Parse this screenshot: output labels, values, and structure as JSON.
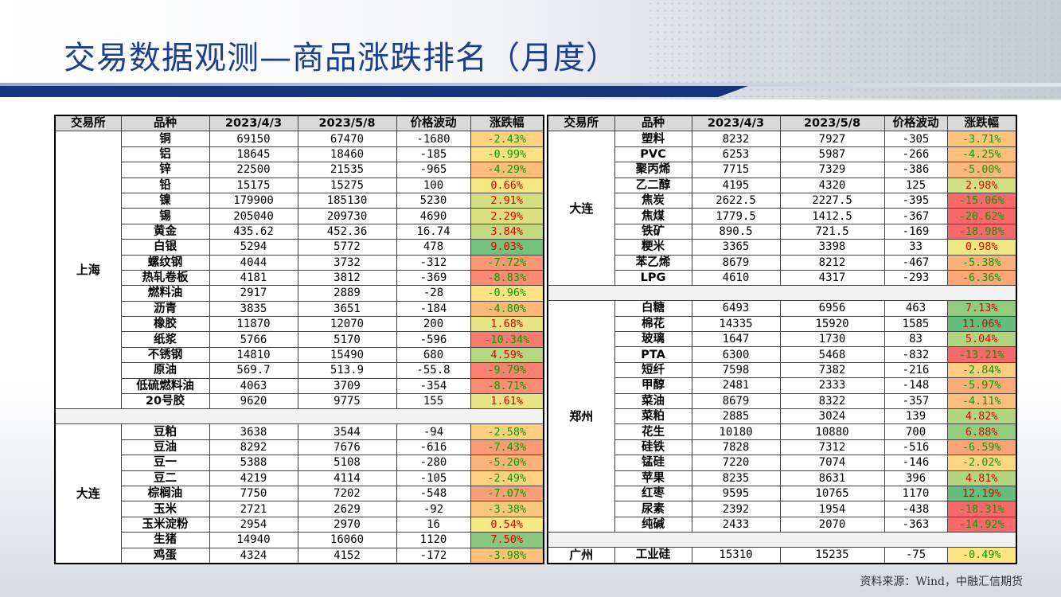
{
  "title": "交易数据观测—商品涨跌排名（月度）",
  "source": "资料来源：Wind，中融汇信期货",
  "colors": {
    "up_text": "#e00000",
    "down_text": "#00a000",
    "heat_green": "#63be7b",
    "heat_yellow": "#ffeb84",
    "heat_red": "#f8696b",
    "title": "#1c3f8c",
    "band": "#15357a"
  },
  "headers": [
    "交易所",
    "品种",
    "2023/4/3",
    "2023/5/8",
    "价格波动",
    "涨跌幅"
  ],
  "left_groups": [
    {
      "exchange": "上海",
      "rows": [
        {
          "name": "铜",
          "d1": "69150",
          "d2": "67470",
          "chg": "-1680",
          "pct": "-2.43%",
          "v": -2.43
        },
        {
          "name": "铝",
          "d1": "18645",
          "d2": "18460",
          "chg": "-185",
          "pct": "-0.99%",
          "v": -0.99
        },
        {
          "name": "锌",
          "d1": "22500",
          "d2": "21535",
          "chg": "-965",
          "pct": "-4.29%",
          "v": -4.29
        },
        {
          "name": "铅",
          "d1": "15175",
          "d2": "15275",
          "chg": "100",
          "pct": "0.66%",
          "v": 0.66
        },
        {
          "name": "镍",
          "d1": "179900",
          "d2": "185130",
          "chg": "5230",
          "pct": "2.91%",
          "v": 2.91
        },
        {
          "name": "锡",
          "d1": "205040",
          "d2": "209730",
          "chg": "4690",
          "pct": "2.29%",
          "v": 2.29
        },
        {
          "name": "黄金",
          "d1": "435.62",
          "d2": "452.36",
          "chg": "16.74",
          "pct": "3.84%",
          "v": 3.84
        },
        {
          "name": "白银",
          "d1": "5294",
          "d2": "5772",
          "chg": "478",
          "pct": "9.03%",
          "v": 9.03
        },
        {
          "name": "螺纹钢",
          "d1": "4044",
          "d2": "3732",
          "chg": "-312",
          "pct": "-7.72%",
          "v": -7.72
        },
        {
          "name": "热轧卷板",
          "d1": "4181",
          "d2": "3812",
          "chg": "-369",
          "pct": "-8.83%",
          "v": -8.83
        },
        {
          "name": "燃料油",
          "d1": "2917",
          "d2": "2889",
          "chg": "-28",
          "pct": "-0.96%",
          "v": -0.96
        },
        {
          "name": "沥青",
          "d1": "3835",
          "d2": "3651",
          "chg": "-184",
          "pct": "-4.80%",
          "v": -4.8
        },
        {
          "name": "橡胶",
          "d1": "11870",
          "d2": "12070",
          "chg": "200",
          "pct": "1.68%",
          "v": 1.68
        },
        {
          "name": "纸浆",
          "d1": "5766",
          "d2": "5170",
          "chg": "-596",
          "pct": "-10.34%",
          "v": -10.34
        },
        {
          "name": "不锈钢",
          "d1": "14810",
          "d2": "15490",
          "chg": "680",
          "pct": "4.59%",
          "v": 4.59
        },
        {
          "name": "原油",
          "d1": "569.7",
          "d2": "513.9",
          "chg": "-55.8",
          "pct": "-9.79%",
          "v": -9.79
        },
        {
          "name": "低硫燃料油",
          "d1": "4063",
          "d2": "3709",
          "chg": "-354",
          "pct": "-8.71%",
          "v": -8.71
        },
        {
          "name": "20号胶",
          "d1": "9620",
          "d2": "9775",
          "chg": "155",
          "pct": "1.61%",
          "v": 1.61
        }
      ]
    },
    {
      "exchange": "大连",
      "rows": [
        {
          "name": "豆粕",
          "d1": "3638",
          "d2": "3544",
          "chg": "-94",
          "pct": "-2.58%",
          "v": -2.58
        },
        {
          "name": "豆油",
          "d1": "8292",
          "d2": "7676",
          "chg": "-616",
          "pct": "-7.43%",
          "v": -7.43
        },
        {
          "name": "豆一",
          "d1": "5388",
          "d2": "5108",
          "chg": "-280",
          "pct": "-5.20%",
          "v": -5.2
        },
        {
          "name": "豆二",
          "d1": "4219",
          "d2": "4114",
          "chg": "-105",
          "pct": "-2.49%",
          "v": -2.49
        },
        {
          "name": "棕榈油",
          "d1": "7750",
          "d2": "7202",
          "chg": "-548",
          "pct": "-7.07%",
          "v": -7.07
        },
        {
          "name": "玉米",
          "d1": "2721",
          "d2": "2629",
          "chg": "-92",
          "pct": "-3.38%",
          "v": -3.38
        },
        {
          "name": "玉米淀粉",
          "d1": "2954",
          "d2": "2970",
          "chg": "16",
          "pct": "0.54%",
          "v": 0.54
        },
        {
          "name": "生猪",
          "d1": "14940",
          "d2": "16060",
          "chg": "1120",
          "pct": "7.50%",
          "v": 7.5
        },
        {
          "name": "鸡蛋",
          "d1": "4324",
          "d2": "4152",
          "chg": "-172",
          "pct": "-3.98%",
          "v": -3.98
        }
      ]
    }
  ],
  "right_groups": [
    {
      "exchange": "大连",
      "rows": [
        {
          "name": "塑料",
          "d1": "8232",
          "d2": "7927",
          "chg": "-305",
          "pct": "-3.71%",
          "v": -3.71
        },
        {
          "name": "PVC",
          "d1": "6253",
          "d2": "5987",
          "chg": "-266",
          "pct": "-4.25%",
          "v": -4.25
        },
        {
          "name": "聚丙烯",
          "d1": "7715",
          "d2": "7329",
          "chg": "-386",
          "pct": "-5.00%",
          "v": -5.0
        },
        {
          "name": "乙二醇",
          "d1": "4195",
          "d2": "4320",
          "chg": "125",
          "pct": "2.98%",
          "v": 2.98
        },
        {
          "name": "焦炭",
          "d1": "2622.5",
          "d2": "2227.5",
          "chg": "-395",
          "pct": "-15.06%",
          "v": -15.06
        },
        {
          "name": "焦煤",
          "d1": "1779.5",
          "d2": "1412.5",
          "chg": "-367",
          "pct": "-20.62%",
          "v": -20.62
        },
        {
          "name": "铁矿",
          "d1": "890.5",
          "d2": "721.5",
          "chg": "-169",
          "pct": "-18.98%",
          "v": -18.98
        },
        {
          "name": "粳米",
          "d1": "3365",
          "d2": "3398",
          "chg": "33",
          "pct": "0.98%",
          "v": 0.98
        },
        {
          "name": "苯乙烯",
          "d1": "8679",
          "d2": "8212",
          "chg": "-467",
          "pct": "-5.38%",
          "v": -5.38
        },
        {
          "name": "LPG",
          "d1": "4610",
          "d2": "4317",
          "chg": "-293",
          "pct": "-6.36%",
          "v": -6.36
        }
      ]
    },
    {
      "exchange": "郑州",
      "rows": [
        {
          "name": "白糖",
          "d1": "6493",
          "d2": "6956",
          "chg": "463",
          "pct": "7.13%",
          "v": 7.13
        },
        {
          "name": "棉花",
          "d1": "14335",
          "d2": "15920",
          "chg": "1585",
          "pct": "11.06%",
          "v": 11.06
        },
        {
          "name": "玻璃",
          "d1": "1647",
          "d2": "1730",
          "chg": "83",
          "pct": "5.04%",
          "v": 5.04
        },
        {
          "name": "PTA",
          "d1": "6300",
          "d2": "5468",
          "chg": "-832",
          "pct": "-13.21%",
          "v": -13.21
        },
        {
          "name": "短纤",
          "d1": "7598",
          "d2": "7382",
          "chg": "-216",
          "pct": "-2.84%",
          "v": -2.84
        },
        {
          "name": "甲醇",
          "d1": "2481",
          "d2": "2333",
          "chg": "-148",
          "pct": "-5.97%",
          "v": -5.97
        },
        {
          "name": "菜油",
          "d1": "8679",
          "d2": "8322",
          "chg": "-357",
          "pct": "-4.11%",
          "v": -4.11
        },
        {
          "name": "菜粕",
          "d1": "2885",
          "d2": "3024",
          "chg": "139",
          "pct": "4.82%",
          "v": 4.82
        },
        {
          "name": "花生",
          "d1": "10180",
          "d2": "10880",
          "chg": "700",
          "pct": "6.88%",
          "v": 6.88
        },
        {
          "name": "硅铁",
          "d1": "7828",
          "d2": "7312",
          "chg": "-516",
          "pct": "-6.59%",
          "v": -6.59
        },
        {
          "name": "锰硅",
          "d1": "7220",
          "d2": "7074",
          "chg": "-146",
          "pct": "-2.02%",
          "v": -2.02
        },
        {
          "name": "苹果",
          "d1": "8235",
          "d2": "8631",
          "chg": "396",
          "pct": "4.81%",
          "v": 4.81
        },
        {
          "name": "红枣",
          "d1": "9595",
          "d2": "10765",
          "chg": "1170",
          "pct": "12.19%",
          "v": 12.19
        },
        {
          "name": "尿素",
          "d1": "2392",
          "d2": "1954",
          "chg": "-438",
          "pct": "-18.31%",
          "v": -18.31
        },
        {
          "name": "纯碱",
          "d1": "2433",
          "d2": "2070",
          "chg": "-363",
          "pct": "-14.92%",
          "v": -14.92
        }
      ]
    },
    {
      "exchange": "广州",
      "rows": [
        {
          "name": "工业硅",
          "d1": "15310",
          "d2": "15235",
          "chg": "-75",
          "pct": "-0.49%",
          "v": -0.49
        }
      ]
    }
  ]
}
